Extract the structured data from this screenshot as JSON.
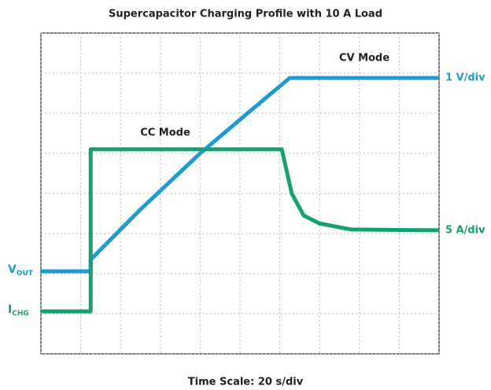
{
  "chart_data": {
    "type": "line",
    "title": "Supercapacitor Charging Profile with 10 A Load",
    "x_label": "Time Scale: 20 s/div",
    "annotations": [
      "CV Mode",
      "CC Mode"
    ],
    "xlim": [
      0,
      10
    ],
    "ylim": [
      0,
      8
    ],
    "xticks": [
      0,
      1,
      2,
      3,
      4,
      5,
      6,
      7,
      8,
      9,
      10
    ],
    "yticks": [
      0,
      1,
      2,
      3,
      4,
      5,
      6,
      7,
      8
    ],
    "grid": true,
    "series": [
      {
        "name": "V",
        "subscript": "OUT",
        "scale_label": "1 V/div",
        "color": "#1f9bd1",
        "x": [
          0,
          1.25,
          1.25,
          2.5,
          4,
          5.25,
          6.25,
          10
        ],
        "values": [
          2.06,
          2.06,
          2.35,
          3.6,
          5.0,
          6.05,
          6.88,
          6.88
        ]
      },
      {
        "name": "I",
        "subscript": "CHG",
        "scale_label": "5 A/div",
        "color": "#17a078",
        "x": [
          0,
          1.25,
          1.25,
          6.05,
          6.3,
          6.6,
          7,
          7.8,
          10
        ],
        "values": [
          1.06,
          1.06,
          5.1,
          5.1,
          4.0,
          3.45,
          3.25,
          3.1,
          3.08
        ]
      }
    ]
  }
}
